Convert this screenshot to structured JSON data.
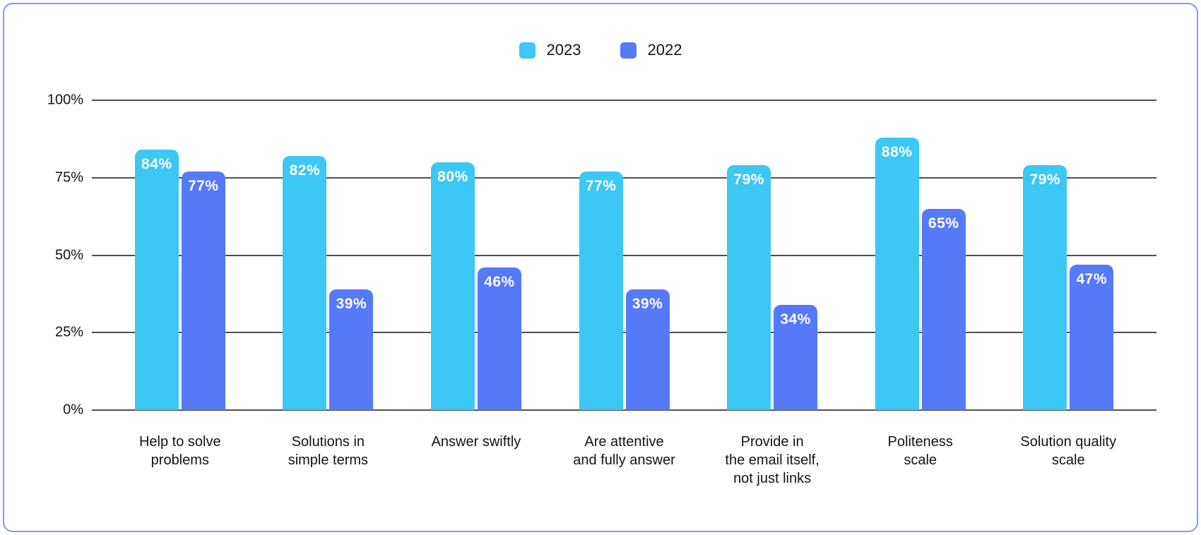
{
  "legend": {
    "items": [
      {
        "label": "2023",
        "color": "#3dc7f4"
      },
      {
        "label": "2022",
        "color": "#5679f7"
      }
    ]
  },
  "chart_data": {
    "type": "bar",
    "title": "",
    "categories": [
      "Help to solve\nproblems",
      "Solutions in\nsimple terms",
      "Answer swiftly",
      "Are attentive\nand fully answer",
      "Provide in\nthe email itself,\nnot just links",
      "Politeness\nscale",
      "Solution quality\nscale"
    ],
    "series": [
      {
        "name": "2023",
        "color": "#3dc7f4",
        "values": [
          84,
          82,
          80,
          77,
          79,
          88,
          79
        ],
        "value_labels": [
          "84%",
          "82%",
          "80%",
          "77%",
          "79%",
          "88%",
          "79%"
        ]
      },
      {
        "name": "2022",
        "color": "#5679f7",
        "values": [
          77,
          39,
          46,
          39,
          34,
          65,
          47
        ],
        "value_labels": [
          "77%",
          "39%",
          "46%",
          "39%",
          "34%",
          "65%",
          "47%"
        ]
      }
    ],
    "y_axis": {
      "ticks": [
        {
          "label": "0%",
          "value": 0
        },
        {
          "label": "25%",
          "value": 25
        },
        {
          "label": "50%",
          "value": 50
        },
        {
          "label": "75%",
          "value": 75
        },
        {
          "label": "100%",
          "value": 100
        }
      ],
      "ylim": [
        0,
        100
      ]
    },
    "grid": true,
    "legend_position": "top-center",
    "xlabel": "",
    "ylabel": ""
  },
  "style": {
    "card_border_color": "#7d9bf3",
    "gridline_color": "#4f4f4f",
    "axis_text_color": "#141414",
    "value_label_color": "#ffffff",
    "background": "#ffffff"
  }
}
